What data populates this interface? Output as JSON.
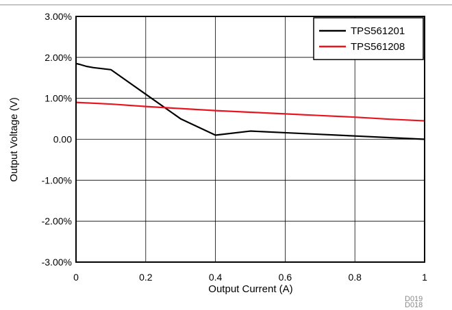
{
  "chart_data": {
    "type": "line",
    "title": "",
    "xlabel": "Output Current (A)",
    "ylabel": "Output Voltage (V)",
    "xlim": [
      0,
      1
    ],
    "ylim": [
      -3,
      3
    ],
    "x_ticks": [
      0,
      0.2,
      0.4,
      0.6,
      0.8,
      1
    ],
    "x_tick_labels": [
      "0",
      "0.2",
      "0.4",
      "0.6",
      "0.8",
      "1"
    ],
    "y_ticks": [
      3,
      2,
      1,
      0,
      -1,
      -2,
      -3
    ],
    "y_tick_labels": [
      "3.00%",
      "2.00%",
      "1.00%",
      "0.00",
      "-1.00%",
      "-2.00%",
      "-3.00%"
    ],
    "grid": true,
    "legend_position": "top-right",
    "series": [
      {
        "name": "TPS561201",
        "color": "#000000",
        "x": [
          0,
          0.01,
          0.03,
          0.05,
          0.1,
          0.2,
          0.3,
          0.4,
          0.5,
          0.6,
          0.7,
          0.8,
          0.9,
          1.0
        ],
        "y": [
          1.85,
          1.83,
          1.78,
          1.75,
          1.7,
          1.1,
          0.5,
          0.1,
          0.2,
          0.16,
          0.12,
          0.08,
          0.04,
          0.0
        ]
      },
      {
        "name": "TPS561208",
        "color": "#e8141e",
        "x": [
          0,
          0.1,
          0.2,
          0.3,
          0.4,
          0.5,
          0.6,
          0.7,
          0.8,
          0.9,
          1.0
        ],
        "y": [
          0.9,
          0.86,
          0.8,
          0.75,
          0.7,
          0.66,
          0.62,
          0.58,
          0.54,
          0.49,
          0.45
        ]
      }
    ],
    "figure_ids": [
      "D019",
      "D018"
    ]
  }
}
